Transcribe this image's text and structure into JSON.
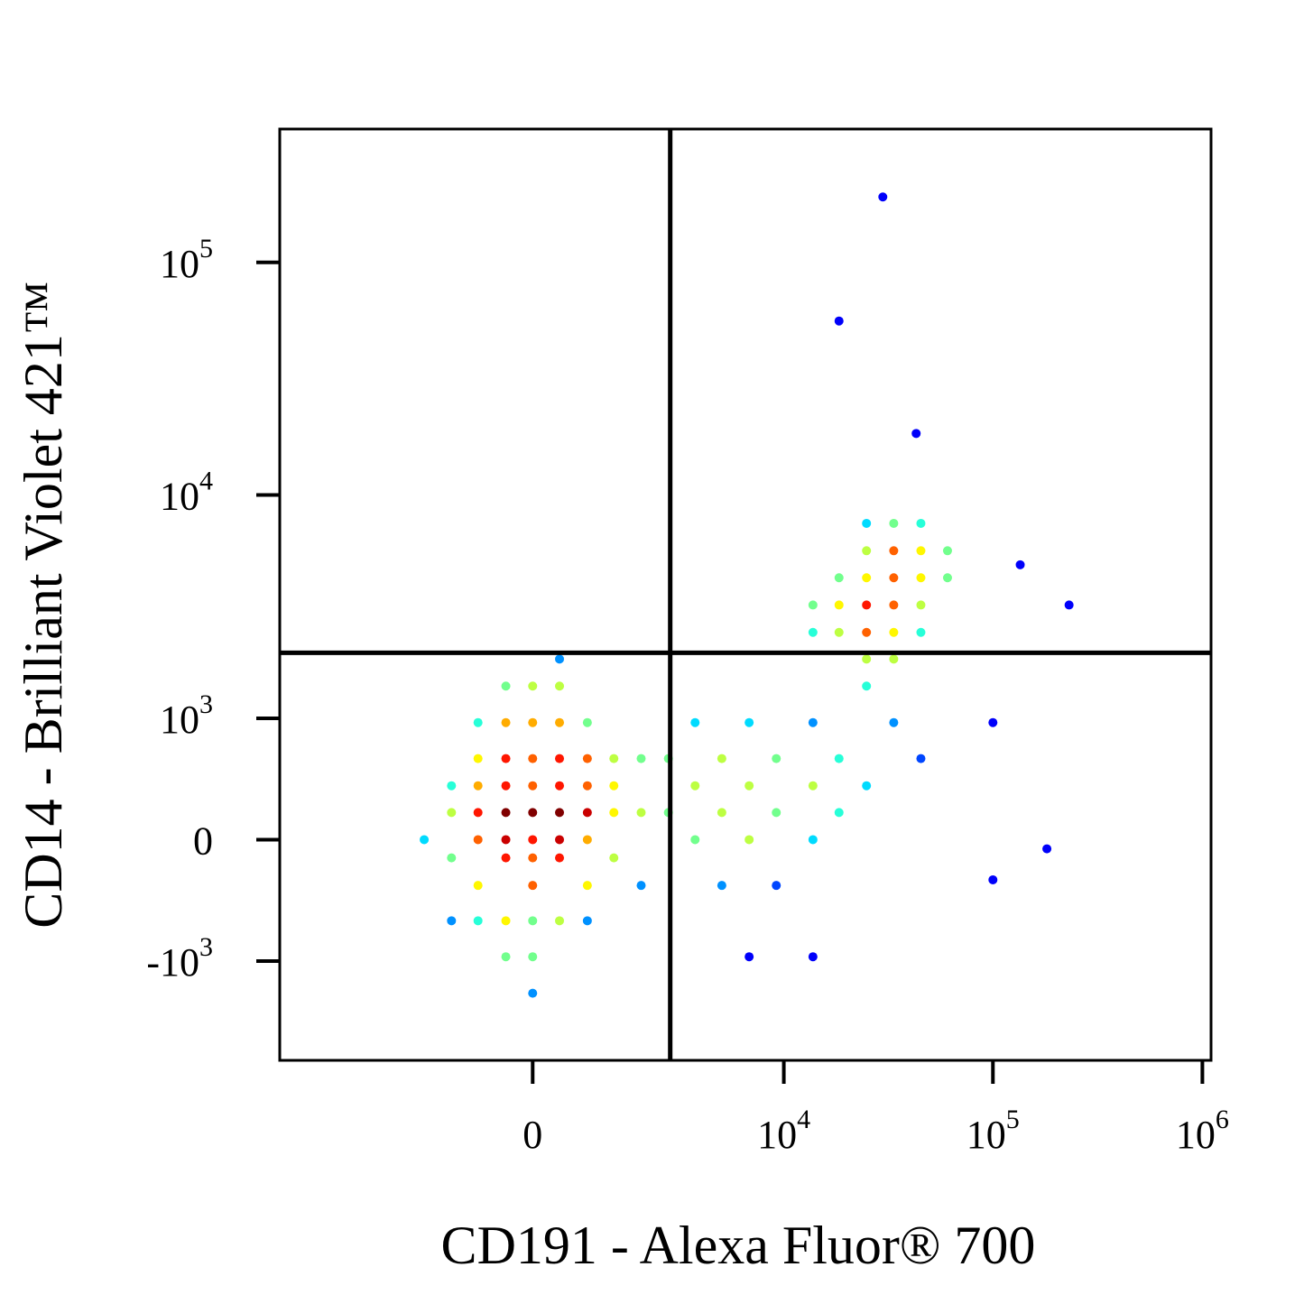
{
  "chart_data": {
    "type": "scatter",
    "scale": "biexponential",
    "xlabel": "CD191 - Alexa Fluor® 700",
    "ylabel": "CD14 - Brilliant Violet 421™",
    "xlim": [
      -10200,
      1100000
    ],
    "ylim": [
      -2900,
      374000
    ],
    "xticks": [
      0,
      {
        "value": 10000,
        "label": "10",
        "sup": "4"
      },
      {
        "value": 100000,
        "label": "10",
        "sup": "5"
      },
      {
        "value": 1000000,
        "label": "10",
        "sup": "6"
      }
    ],
    "yticks": [
      {
        "value": -1000,
        "label": "-10",
        "sup": "3"
      },
      0,
      {
        "value": 1000,
        "label": "10",
        "sup": "3"
      },
      {
        "value": 10000,
        "label": "10",
        "sup": "4"
      },
      {
        "value": 100000,
        "label": "10",
        "sup": "5"
      }
    ],
    "quadrant_gates": {
      "x": 2740,
      "y": 2050
    },
    "x": [
      0,
      0,
      0,
      -380,
      380,
      -380,
      380,
      0,
      0,
      -380,
      380,
      -380,
      380,
      0,
      -380,
      380,
      -810,
      810,
      -810,
      810,
      -810,
      810,
      0,
      -380,
      380,
      -810,
      810,
      0,
      -380,
      380,
      -1290,
      1290,
      -1290,
      1290,
      -810,
      810,
      0,
      380,
      -380,
      -1290,
      1290,
      -810,
      810,
      0,
      -380,
      -1900,
      1900,
      -1290,
      1290,
      0,
      -810,
      810,
      380,
      1900,
      1900,
      3680,
      5000,
      6800,
      9200,
      5000,
      6800,
      3680,
      9200,
      13800,
      13800,
      18400,
      6800,
      5000,
      3680,
      18400,
      24900,
      9200,
      2680,
      2680,
      13800,
      24900,
      6800,
      33600,
      45300,
      13800,
      33600,
      24900,
      33600,
      45300,
      24900,
      33600,
      45300,
      18400,
      24900,
      45300,
      33600,
      18400,
      60700,
      24900,
      33600,
      18400,
      45300,
      24900,
      13800,
      60700,
      33600,
      45300,
      24900,
      13800,
      29800,
      18400,
      43000,
      100000,
      181000,
      100000,
      231000,
      135000
    ],
    "values": [
      180,
      0,
      370,
      180,
      180,
      0,
      0,
      -120,
      590,
      370,
      370,
      -120,
      -120,
      -310,
      590,
      590,
      180,
      180,
      0,
      0,
      370,
      370,
      950,
      950,
      950,
      -310,
      -310,
      -590,
      -590,
      -590,
      180,
      180,
      -120,
      -120,
      590,
      590,
      1440,
      1440,
      1440,
      370,
      370,
      -590,
      -590,
      -950,
      -950,
      0,
      180,
      -590,
      590,
      -1440,
      950,
      950,
      1920,
      590,
      -310,
      370,
      180,
      370,
      180,
      590,
      0,
      0,
      590,
      370,
      0,
      180,
      950,
      -310,
      950,
      590,
      370,
      -310,
      180,
      590,
      950,
      1440,
      -950,
      950,
      590,
      -950,
      4390,
      4390,
      3340,
      4390,
      3340,
      5750,
      3340,
      3340,
      5750,
      5750,
      2530,
      4390,
      4390,
      2530,
      7550,
      2530,
      2530,
      7550,
      3340,
      5750,
      1920,
      7550,
      1920,
      2530,
      191000,
      56000,
      18400,
      950,
      -60,
      -270,
      3340,
      5000
    ],
    "color": "density",
    "marker_size": 5
  }
}
